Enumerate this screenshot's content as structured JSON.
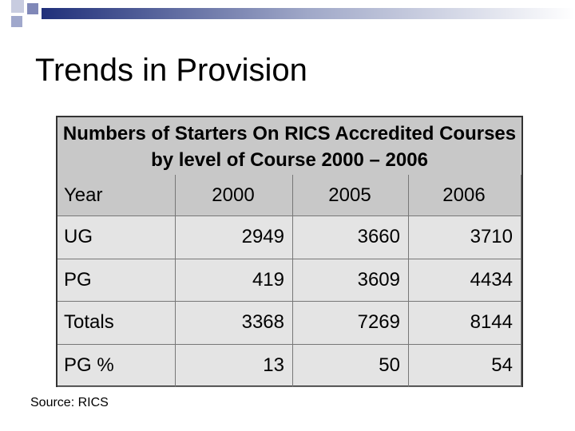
{
  "header": {
    "title": "Trends in Provision"
  },
  "table": {
    "caption": "Numbers of Starters On RICS Accredited Courses by level of Course 2000 – 2006",
    "columns": [
      "Year",
      "2000",
      "2005",
      "2006"
    ],
    "rows": [
      [
        "UG",
        2949,
        3660,
        3710
      ],
      [
        "PG",
        419,
        3609,
        4434
      ],
      [
        "Totals",
        3368,
        7269,
        8144
      ],
      [
        "PG %",
        13,
        50,
        54
      ]
    ]
  },
  "footer": {
    "source": "Source: RICS"
  }
}
